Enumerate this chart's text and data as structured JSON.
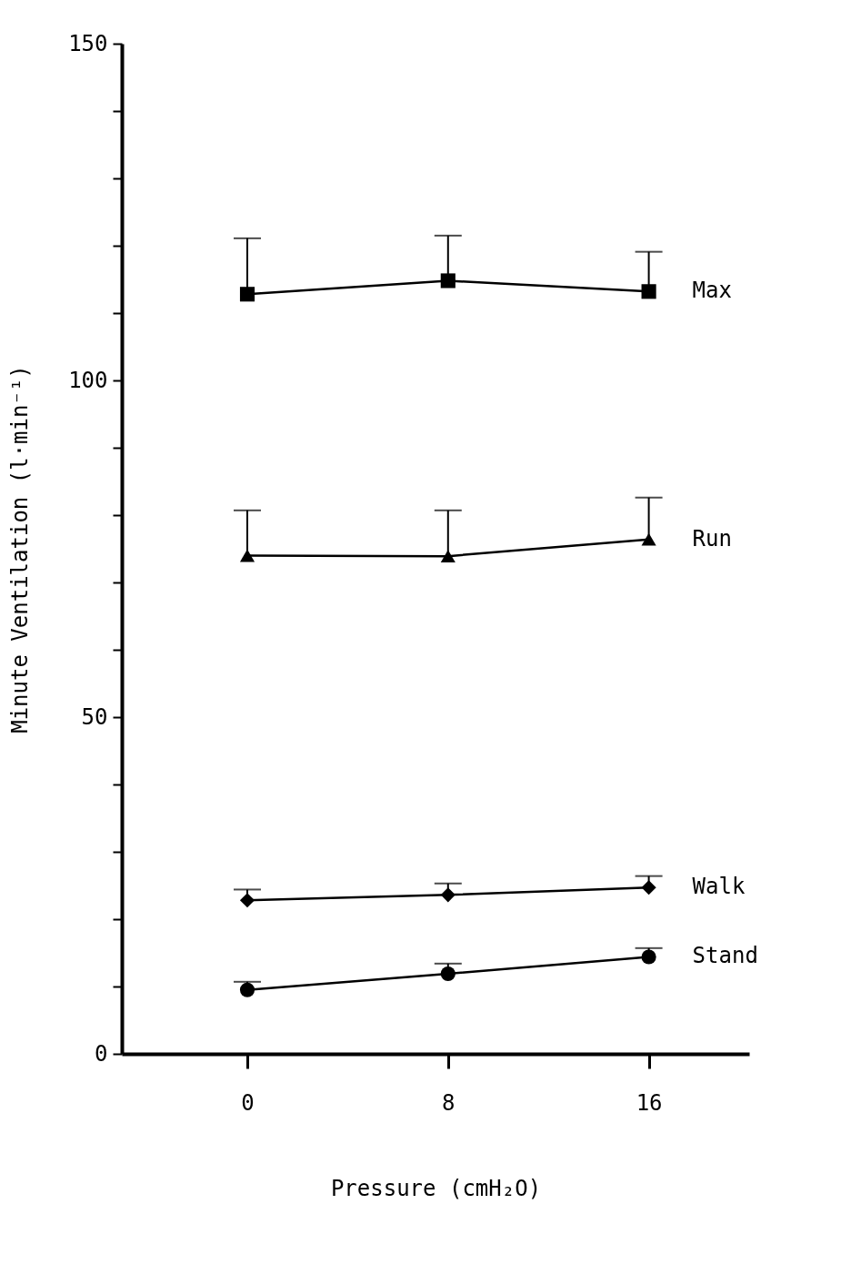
{
  "chart_data": {
    "type": "line",
    "xlabel": "Pressure  (cmH₂O)",
    "ylabel": "Minute Ventilation   (l·min⁻¹)",
    "x": [
      0,
      8,
      16
    ],
    "xlim": [
      -5,
      20
    ],
    "xticks": [
      0,
      8,
      16
    ],
    "ylim": [
      0,
      150
    ],
    "yticks": [
      0,
      {
        "value": 10,
        "label": null
      },
      {
        "value": 20,
        "label": null
      },
      {
        "value": 30,
        "label": null
      },
      {
        "value": 40,
        "label": null
      },
      50,
      {
        "value": 60,
        "label": null
      },
      {
        "value": 70,
        "label": null
      },
      {
        "value": 80,
        "label": null
      },
      {
        "value": 90,
        "label": null
      },
      100,
      {
        "value": 110,
        "label": null
      },
      {
        "value": 120,
        "label": null
      },
      {
        "value": 130,
        "label": null
      },
      {
        "value": 140,
        "label": null
      },
      150
    ],
    "grid": false,
    "legend": false,
    "line_style": "solid",
    "series": [
      {
        "name": "Max",
        "color": "#000000",
        "marker": "square",
        "values": [
          112.8,
          114.8,
          113.2
        ],
        "errors": [
          [
            112.8,
            121.1
          ],
          [
            114.8,
            121.5
          ],
          [
            113.2,
            119.1
          ]
        ]
      },
      {
        "name": "Run",
        "color": "#000000",
        "marker": "triangle",
        "values": [
          74.0,
          73.9,
          76.4
        ],
        "errors": [
          [
            74.0,
            80.7
          ],
          [
            73.9,
            80.7
          ],
          [
            76.4,
            82.6
          ]
        ]
      },
      {
        "name": "Walk",
        "color": "#000000",
        "marker": "diamond",
        "values": [
          22.8,
          23.6,
          24.7
        ],
        "errors": [
          [
            22.8,
            24.4
          ],
          [
            23.6,
            25.3
          ],
          [
            24.7,
            26.4
          ]
        ]
      },
      {
        "name": "Stand",
        "color": "#000000",
        "marker": "circle",
        "values": [
          9.5,
          11.9,
          14.4
        ],
        "errors": [
          [
            9.5,
            10.7
          ],
          [
            11.9,
            13.4
          ],
          [
            14.4,
            15.7
          ]
        ]
      }
    ]
  }
}
